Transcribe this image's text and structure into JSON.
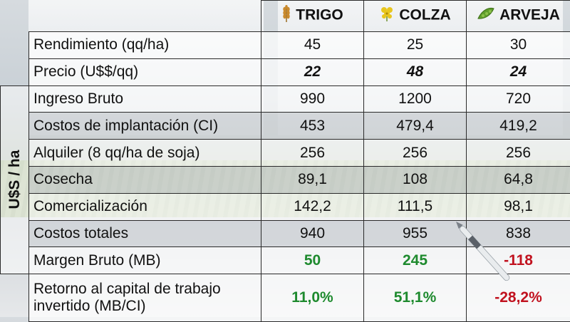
{
  "crops": [
    {
      "name": "TRIGO",
      "icon": "wheat-icon"
    },
    {
      "name": "COLZA",
      "icon": "rapeseed-flower-icon"
    },
    {
      "name": "ARVEJA",
      "icon": "pea-pod-icon"
    }
  ],
  "unit_label": "U$S / ha",
  "rows": {
    "rendimiento": {
      "label": "Rendimiento (qq/ha)",
      "values": [
        "45",
        "25",
        "30"
      ]
    },
    "precio": {
      "label": "Precio (U$$/qq)",
      "values": [
        "22",
        "48",
        "24"
      ]
    },
    "ingreso": {
      "label": "Ingreso Bruto",
      "values": [
        "990",
        "1200",
        "720"
      ]
    },
    "costos_impl": {
      "label": "Costos de implantación (CI)",
      "values": [
        "453",
        "479,4",
        "419,2"
      ]
    },
    "alquiler": {
      "label": "Alquiler (8 qq/ha de soja)",
      "values": [
        "256",
        "256",
        "256"
      ]
    },
    "cosecha": {
      "label": "Cosecha",
      "values": [
        "89,1",
        "108",
        "64,8"
      ]
    },
    "comercializacion": {
      "label": "Comercialización",
      "values": [
        "142,2",
        "111,5",
        "98,1"
      ]
    },
    "costos_totales": {
      "label": "Costos totales",
      "values": [
        "940",
        "955",
        "838"
      ]
    },
    "margen": {
      "label": "Margen Bruto (MB)",
      "values": [
        "50",
        "245",
        "-118"
      ]
    },
    "retorno": {
      "label_line1": "Retorno al capital de trabajo",
      "label_line2": "invertido (MB/CI)",
      "values": [
        "11,0%",
        "51,1%",
        "-28,2%"
      ]
    }
  },
  "colors": {
    "positive": "#1e8a2e",
    "negative": "#c1121f",
    "border": "#2a2a2a"
  }
}
